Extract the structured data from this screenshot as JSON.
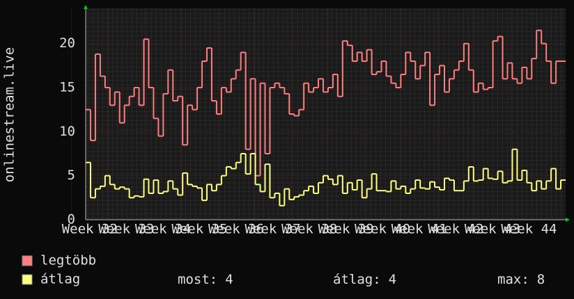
{
  "chart_data": {
    "type": "step",
    "y_label": "onlinestream.live",
    "ylim": [
      0,
      24
    ],
    "yticks": [
      0,
      5,
      10,
      15,
      20
    ],
    "xlim": [
      31.89,
      45.0
    ],
    "xticks": [
      {
        "value": 32,
        "label": "Week 32"
      },
      {
        "value": 33,
        "label": "Week 33"
      },
      {
        "value": 34,
        "label": "Week 34"
      },
      {
        "value": 35,
        "label": "Week 35"
      },
      {
        "value": 36,
        "label": "Week 36"
      },
      {
        "value": 37,
        "label": "Week 37"
      },
      {
        "value": 38,
        "label": "Week 38"
      },
      {
        "value": 39,
        "label": "Week 39"
      },
      {
        "value": 40,
        "label": "Week 40"
      },
      {
        "value": 41,
        "label": "Week 41"
      },
      {
        "value": 42,
        "label": "Week 42"
      },
      {
        "value": 43,
        "label": "Week 43"
      },
      {
        "value": 44,
        "label": "Week 44"
      }
    ],
    "grid": true,
    "series": [
      {
        "name": "legtöbb",
        "color": "#ff7f7f",
        "values": [
          12.5,
          9,
          18.8,
          16.3,
          15,
          13,
          14.5,
          11,
          13,
          14,
          15,
          13,
          20.5,
          15,
          11.5,
          9.5,
          14.3,
          17,
          13.5,
          14,
          8.5,
          13,
          12.5,
          15,
          18,
          19.5,
          13.5,
          12,
          15,
          14.5,
          16,
          17,
          19,
          8,
          16,
          5,
          15.5,
          7.5,
          15,
          15.5,
          15,
          14.3,
          12,
          11.8,
          12.5,
          15.5,
          14.5,
          15,
          16,
          14.5,
          15,
          16.5,
          14,
          20.3,
          19.8,
          18,
          19,
          18,
          19.3,
          16.5,
          16.8,
          18,
          16.3,
          15.5,
          15,
          16.5,
          19,
          18,
          16,
          17.5,
          19,
          13,
          16.5,
          17.5,
          14.5,
          16,
          17,
          18,
          20,
          17,
          14.5,
          15.5,
          14.8,
          15,
          20.3,
          20.8,
          16,
          17.8,
          16,
          15.5,
          17.3,
          16,
          18.3,
          21.5,
          20,
          18,
          15.5,
          18,
          18
        ]
      },
      {
        "name": "átlag",
        "color": "#ffff7f",
        "values": [
          6.5,
          2.5,
          3.5,
          3.8,
          5,
          4,
          3.5,
          3.7,
          3.5,
          2.5,
          2.7,
          2.6,
          4.6,
          3,
          4.5,
          3,
          3.2,
          4.4,
          3.5,
          2.8,
          5.3,
          4,
          3.8,
          3.6,
          2.2,
          4,
          3.3,
          4,
          5,
          6,
          5.8,
          6.5,
          7.5,
          5.2,
          7.5,
          4,
          3.2,
          6.3,
          2.5,
          3,
          1.6,
          3.5,
          2.3,
          2.6,
          2.8,
          3.3,
          3.8,
          3,
          4.2,
          5,
          4.6,
          4,
          5,
          3,
          4.2,
          3.4,
          4.5,
          2.5,
          3.5,
          5.2,
          3.3,
          3.3,
          3.2,
          4.4,
          3.5,
          3.8,
          3,
          3.5,
          4.5,
          3.6,
          3.5,
          4.3,
          3.7,
          3.4,
          4.7,
          4.5,
          3.3,
          3.3,
          4.4,
          6,
          4.4,
          4.5,
          5.8,
          4.7,
          4.6,
          5.5,
          4.2,
          4.4,
          8,
          4.5,
          5.6,
          4.2,
          3.3,
          4.4,
          3.5,
          4.4,
          5.8,
          3.5,
          4.5
        ]
      }
    ],
    "stats": [
      {
        "label": "most:",
        "value": 4
      },
      {
        "label": "átlag:",
        "value": 4
      },
      {
        "label": "max:",
        "value": 8
      }
    ]
  }
}
